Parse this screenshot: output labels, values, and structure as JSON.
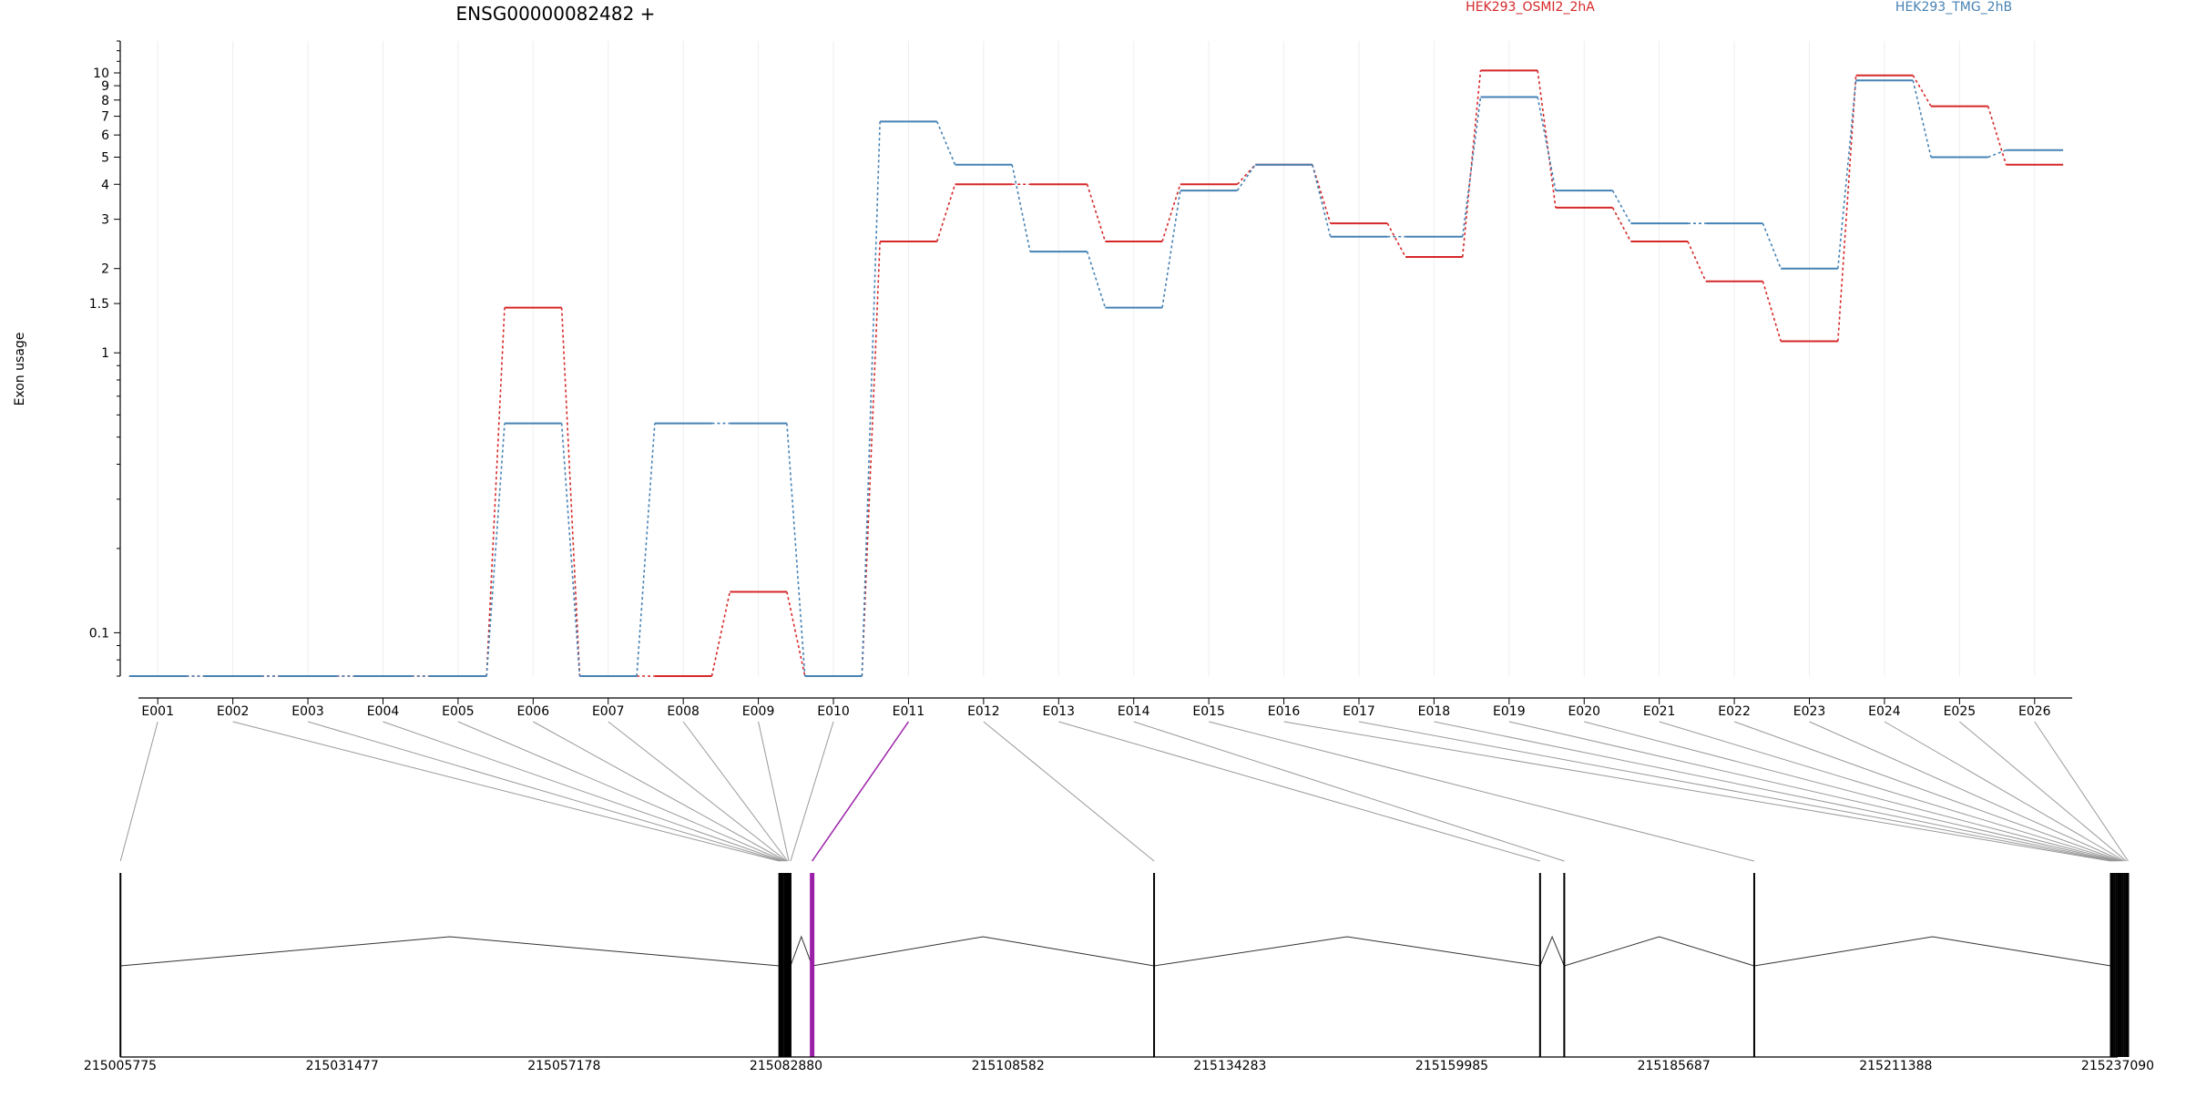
{
  "chart_data": {
    "type": "line",
    "title": "ENSG00000082482 +",
    "ylabel": "Exon usage",
    "yscale": "log",
    "ylim": [
      0.07,
      13
    ],
    "yticks": [
      {
        "value": 0.1,
        "label": "0.1"
      },
      {
        "value": 1,
        "label": "1"
      },
      {
        "value": 1.5,
        "label": "1.5"
      },
      {
        "value": 2,
        "label": "2"
      },
      {
        "value": 3,
        "label": "3"
      },
      {
        "value": 4,
        "label": "4"
      },
      {
        "value": 5,
        "label": "5"
      },
      {
        "value": 6,
        "label": "6"
      },
      {
        "value": 7,
        "label": "7"
      },
      {
        "value": 8,
        "label": "8"
      },
      {
        "value": 9,
        "label": "9"
      },
      {
        "value": 10,
        "label": "10"
      }
    ],
    "categories": [
      "E001",
      "E002",
      "E003",
      "E004",
      "E005",
      "E006",
      "E007",
      "E008",
      "E009",
      "E010",
      "E011",
      "E012",
      "E013",
      "E014",
      "E015",
      "E016",
      "E017",
      "E018",
      "E019",
      "E020",
      "E021",
      "E022",
      "E023",
      "E024",
      "E025",
      "E026"
    ],
    "series": [
      {
        "name": "HEK293_OSMI2_2hA",
        "color": "#d62728",
        "values": [
          0.07,
          0.07,
          0.07,
          0.07,
          0.07,
          1.45,
          0.07,
          0.07,
          0.14,
          0.07,
          2.5,
          4.0,
          4.0,
          2.5,
          4.0,
          4.7,
          2.9,
          2.2,
          10.2,
          3.3,
          2.5,
          1.8,
          1.1,
          9.8,
          7.6,
          4.7
        ]
      },
      {
        "name": "HEK293_TMG_2hB",
        "color": "#4682b4",
        "values": [
          0.07,
          0.07,
          0.07,
          0.07,
          0.07,
          0.56,
          0.07,
          0.56,
          0.56,
          0.07,
          6.7,
          4.7,
          2.3,
          1.45,
          3.8,
          4.7,
          2.6,
          2.6,
          8.2,
          3.8,
          2.9,
          2.9,
          2.0,
          9.4,
          5.0,
          5.3
        ]
      }
    ],
    "highlight_exon": "E011",
    "highlight_color": "#9b1fa8",
    "gene_axis": {
      "start": 215005775,
      "end": 215237090,
      "tick_labels": [
        "215005775",
        "215031477",
        "215057178",
        "215082880",
        "215108582",
        "215134283",
        "215159985",
        "215185687",
        "215211388",
        "215237090"
      ],
      "exon_positions": [
        215005800,
        215082100,
        215082300,
        215082500,
        215082700,
        215082850,
        215082950,
        215083050,
        215083200,
        215083400,
        215085900,
        215125500,
        215170200,
        215173000,
        215195000,
        215236300,
        215236500,
        215236700,
        215236900,
        215237100,
        215237300,
        215237500,
        215237700,
        215237900,
        215238100,
        215238300
      ]
    },
    "grid": true
  }
}
